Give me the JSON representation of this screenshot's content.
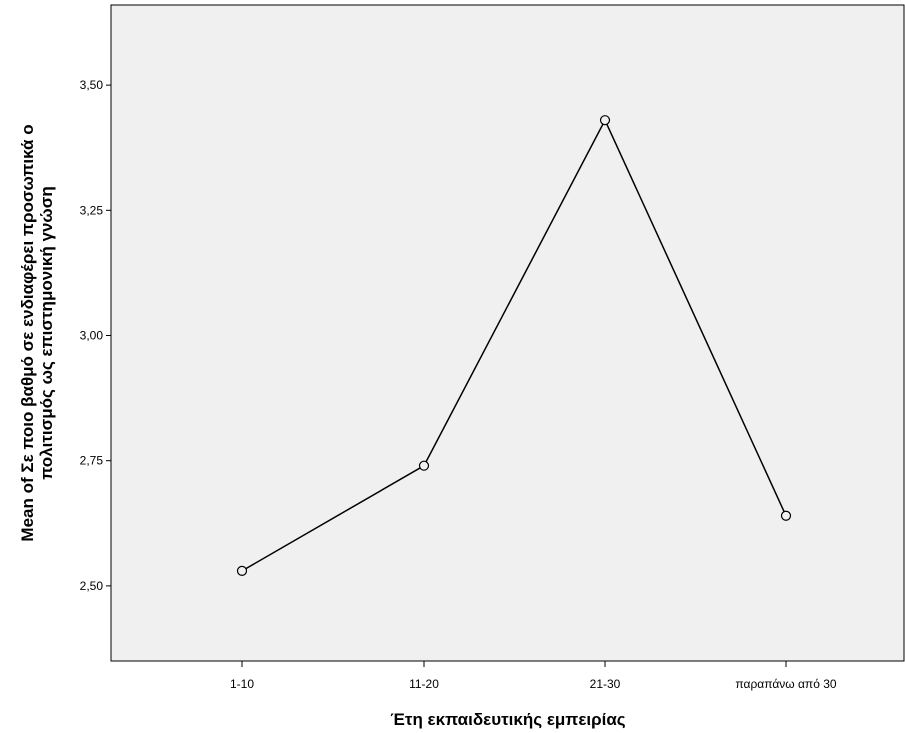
{
  "chart_data": {
    "type": "line",
    "title": "",
    "xlabel": "Έτη εκπαιδευτικής  εμπειρίας",
    "ylabel_lines": [
      "Mean of Σε ποιο βαθμό σε ενδιαφέρει προσωπικά ο",
      "πολιτισμός ως επιστημονική γνώση"
    ],
    "categories": [
      "1-10",
      "11-20",
      "21-30",
      "παραπάνω από 30"
    ],
    "values": [
      2.53,
      2.74,
      3.43,
      2.64
    ],
    "ylim": [
      2.35,
      3.66
    ],
    "yticks": [
      2.5,
      2.75,
      3.0,
      3.25,
      3.5
    ],
    "ytick_labels": [
      "2,50",
      "2,75",
      "3,00",
      "3,25",
      "3,50"
    ],
    "grid": false,
    "legend": "none",
    "marker": "open-circle",
    "colors": {
      "plot_background": "#f0f0f0",
      "line": "#000000",
      "marker_fill": "#f0f0f0"
    }
  }
}
